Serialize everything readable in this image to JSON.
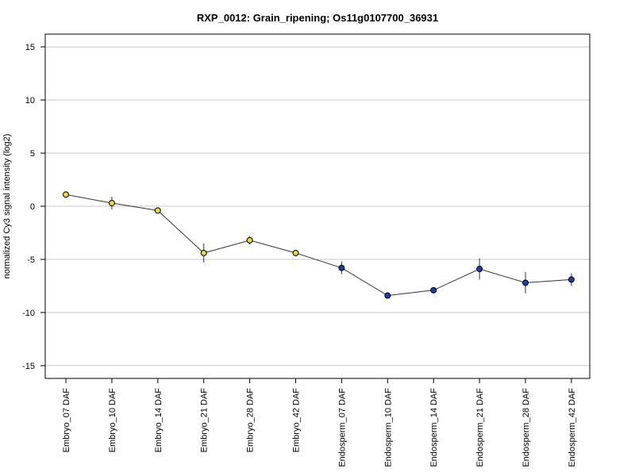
{
  "chart_data": {
    "type": "line",
    "title": "RXP_0012: Grain_ripening; Os11g0107700_36931",
    "xlabel": "",
    "ylabel": "normalized Cy3 signal intensity (log2)",
    "ylim": [
      -16.2,
      16.2
    ],
    "yticks": [
      -15,
      -10,
      -5,
      0,
      5,
      10,
      15
    ],
    "grid": true,
    "categories": [
      "Embryo_07 DAF",
      "Embryo_10 DAF",
      "Embryo_14 DAF",
      "Embryo_21 DAF",
      "Embryo_28 DAF",
      "Embryo_42 DAF",
      "Endosperm_07 DAF",
      "Endosperm_10 DAF",
      "Endosperm_14 DAF",
      "Endosperm_21 DAF",
      "Endosperm_28 DAF",
      "Endosperm_42 DAF"
    ],
    "values": [
      1.1,
      0.3,
      -0.4,
      -4.4,
      -3.2,
      -4.4,
      -5.8,
      -8.4,
      -7.9,
      -5.9,
      -7.2,
      -6.9
    ],
    "error": [
      0.2,
      0.6,
      0.15,
      0.9,
      0.4,
      0.1,
      0.6,
      0.1,
      0.1,
      1.0,
      1.0,
      0.6
    ],
    "point_colors": [
      "#e8d44d",
      "#e8d44d",
      "#e8d44d",
      "#e8d44d",
      "#e8d44d",
      "#e8d44d",
      "#1f3fa8",
      "#1f3fa8",
      "#1f3fa8",
      "#1f3fa8",
      "#1f3fa8",
      "#1f3fa8"
    ],
    "line_color": "#333333",
    "grid_color": "#c8c8c8"
  }
}
